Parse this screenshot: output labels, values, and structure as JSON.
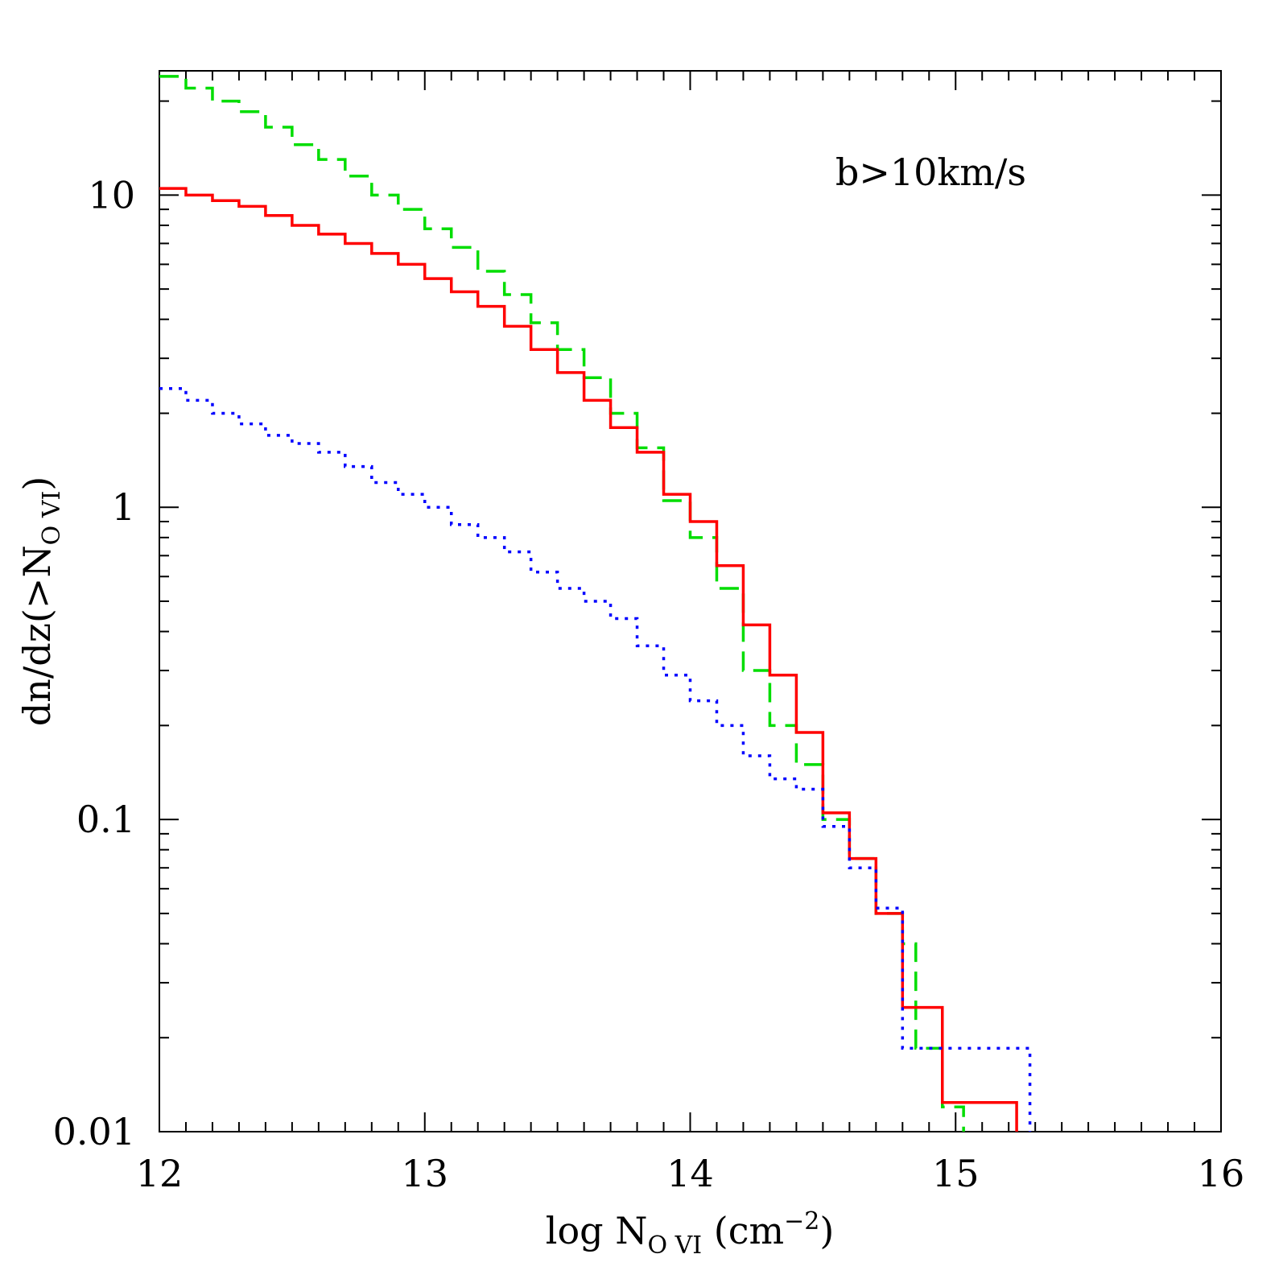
{
  "chart_data": {
    "type": "step",
    "yscale": "log",
    "xlim": [
      12,
      16
    ],
    "ylim": [
      0.01,
      25
    ],
    "xticks": [
      12,
      13,
      14,
      15,
      16
    ],
    "yticks": [
      0.01,
      0.1,
      1,
      10
    ],
    "xminorticks": [
      12.1,
      12.2,
      12.3,
      12.4,
      12.5,
      12.6,
      12.7,
      12.8,
      12.9,
      13.1,
      13.2,
      13.3,
      13.4,
      13.5,
      13.6,
      13.7,
      13.8,
      13.9,
      14.1,
      14.2,
      14.3,
      14.4,
      14.5,
      14.6,
      14.7,
      14.8,
      14.9,
      15.1,
      15.2,
      15.3,
      15.4,
      15.5,
      15.6,
      15.7,
      15.8,
      15.9
    ],
    "yminorticks": [
      0.02,
      0.03,
      0.04,
      0.05,
      0.06,
      0.07,
      0.08,
      0.09,
      0.2,
      0.3,
      0.4,
      0.5,
      0.6,
      0.7,
      0.8,
      0.9,
      2,
      3,
      4,
      5,
      6,
      7,
      8,
      9,
      20
    ],
    "xlabel": {
      "main": "log N",
      "sub": "O VI",
      "mid": " (cm",
      "sup": "−2",
      "end": ")"
    },
    "ylabel": {
      "main": "dn/dz(>N",
      "sub": "O VI",
      "end": ")"
    },
    "annotation": "b>10km/s",
    "series": [
      {
        "color": "#00dd00",
        "dash": "dashed",
        "x": [
          12.0,
          12.1,
          12.2,
          12.3,
          12.4,
          12.5,
          12.6,
          12.7,
          12.8,
          12.9,
          13.0,
          13.1,
          13.2,
          13.3,
          13.4,
          13.5,
          13.6,
          13.7,
          13.8,
          13.9,
          14.0,
          14.1,
          14.2,
          14.3,
          14.4,
          14.5,
          14.6,
          14.7,
          14.8,
          14.85,
          14.95,
          15.03
        ],
        "values": [
          24,
          22,
          20,
          18.5,
          16.5,
          14.5,
          13,
          11.5,
          10,
          9.0,
          7.8,
          6.8,
          5.7,
          4.8,
          3.9,
          3.2,
          2.6,
          2.0,
          1.55,
          1.05,
          0.8,
          0.55,
          0.3,
          0.2,
          0.15,
          0.1,
          0.075,
          0.05,
          0.04,
          0.0185,
          0.012,
          0.01
        ]
      },
      {
        "color": "#ff0000",
        "dash": "solid",
        "x": [
          12.0,
          12.1,
          12.2,
          12.3,
          12.4,
          12.5,
          12.6,
          12.7,
          12.8,
          12.9,
          13.0,
          13.1,
          13.2,
          13.3,
          13.4,
          13.5,
          13.6,
          13.7,
          13.8,
          13.9,
          14.0,
          14.1,
          14.2,
          14.3,
          14.4,
          14.5,
          14.6,
          14.7,
          14.8,
          14.95,
          15.23
        ],
        "values": [
          10.5,
          10,
          9.6,
          9.2,
          8.6,
          8.0,
          7.5,
          7.0,
          6.5,
          6.0,
          5.4,
          4.9,
          4.4,
          3.8,
          3.2,
          2.7,
          2.2,
          1.8,
          1.5,
          1.1,
          0.9,
          0.65,
          0.42,
          0.29,
          0.19,
          0.105,
          0.075,
          0.05,
          0.025,
          0.0124,
          0.01
        ]
      },
      {
        "color": "#0000ff",
        "dash": "dotted",
        "x": [
          12.0,
          12.1,
          12.2,
          12.3,
          12.4,
          12.5,
          12.6,
          12.7,
          12.8,
          12.9,
          13.0,
          13.1,
          13.2,
          13.3,
          13.4,
          13.5,
          13.6,
          13.7,
          13.8,
          13.9,
          14.0,
          14.1,
          14.2,
          14.3,
          14.4,
          14.5,
          14.6,
          14.7,
          14.8,
          15.28
        ],
        "values": [
          2.4,
          2.2,
          2.0,
          1.85,
          1.7,
          1.6,
          1.5,
          1.35,
          1.2,
          1.1,
          1.0,
          0.88,
          0.8,
          0.72,
          0.62,
          0.55,
          0.5,
          0.44,
          0.36,
          0.29,
          0.24,
          0.2,
          0.16,
          0.135,
          0.125,
          0.095,
          0.07,
          0.052,
          0.0185,
          0.01
        ]
      }
    ]
  }
}
